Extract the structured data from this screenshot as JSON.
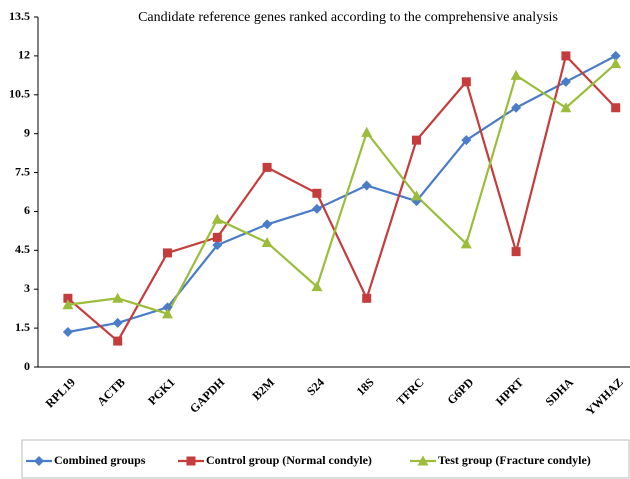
{
  "chart_data": {
    "type": "line",
    "title": "Candidate reference genes ranked according to the comprehensive analysis",
    "categories": [
      "RPL19",
      "ACTB",
      "PGK1",
      "GAPDH",
      "B2M",
      "S24",
      "18S",
      "TFRC",
      "G6PD",
      "HPRT",
      "SDHA",
      "YWHAZ"
    ],
    "series": [
      {
        "name": "Combined groups",
        "color": "#4a7cc7",
        "marker": "diamond",
        "values": [
          1.35,
          1.7,
          2.3,
          4.7,
          5.5,
          6.1,
          7.0,
          6.4,
          8.75,
          10.0,
          11.0,
          12.0
        ]
      },
      {
        "name": "Control group (Normal condyle)",
        "color": "#c43c3c",
        "marker": "square",
        "values": [
          2.65,
          1.0,
          4.4,
          5.0,
          7.7,
          6.7,
          2.65,
          8.75,
          11.0,
          4.45,
          12.0,
          10.0
        ]
      },
      {
        "name": "Test group (Fracture condyle)",
        "color": "#9cbd3c",
        "marker": "triangle",
        "values": [
          2.4,
          2.65,
          2.05,
          5.7,
          4.8,
          3.1,
          9.05,
          6.6,
          4.75,
          11.25,
          10.0,
          11.7
        ]
      }
    ],
    "ylim": [
      0,
      13.5
    ],
    "yticks": [
      0,
      1.5,
      3,
      4.5,
      6,
      7.5,
      9,
      10.5,
      12,
      13.5
    ],
    "grid": false,
    "legend": "bottom"
  }
}
